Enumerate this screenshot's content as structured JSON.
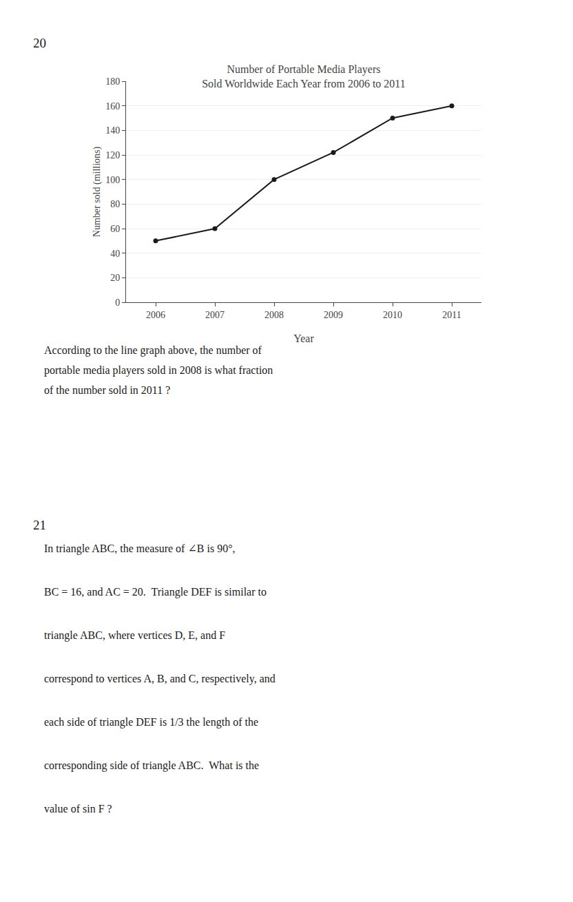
{
  "chart_data": {
    "type": "line",
    "title": "Number of Portable Media Players\nSold Worldwide Each Year from 2006 to 2011",
    "xlabel": "Year",
    "ylabel": "Number sold (millions)",
    "x": [
      2006,
      2007,
      2008,
      2009,
      2010,
      2011
    ],
    "values": [
      50,
      60,
      100,
      122,
      150,
      160
    ],
    "xlim": [
      2005.5,
      2011.5
    ],
    "xticks": [
      2006,
      2007,
      2008,
      2009,
      2010,
      2011
    ],
    "ylim": [
      0,
      180
    ],
    "yticks": [
      0,
      20,
      40,
      60,
      80,
      100,
      120,
      140,
      160,
      180
    ],
    "grid": true,
    "color": "#1a1a1a",
    "marker": "circle",
    "annotations": [
      "20",
      "According to the line graph above, the number of",
      "portable media players sold in 2008 is what fraction",
      "of the number sold in 2011 ?",
      "21",
      "In triangle ABC, the measure of ∠B is 90°,",
      "BC = 16, and AC = 20.  Triangle DEF is similar to",
      "triangle ABC, where vertices D, E, and F",
      "correspond to vertices A, B, and C, respectively, and",
      "each side of triangle DEF is 1/3 the length of the",
      "corresponding side of triangle ABC.  What is the",
      "value of sin F ?"
    ]
  }
}
